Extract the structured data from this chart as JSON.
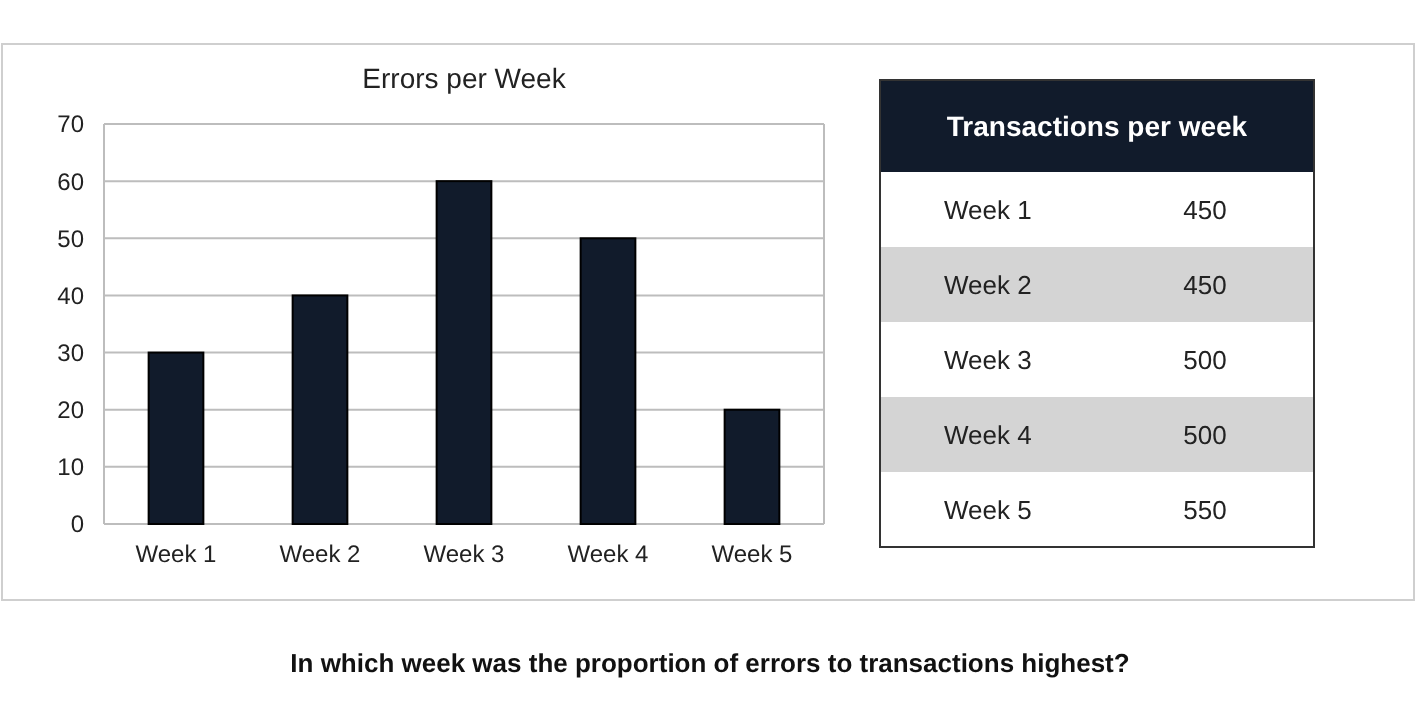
{
  "chart_data": [
    {
      "type": "bar",
      "title": "Errors per Week",
      "categories": [
        "Week 1",
        "Week 2",
        "Week 3",
        "Week 4",
        "Week 5"
      ],
      "values": [
        30,
        40,
        60,
        50,
        20
      ],
      "color": "#111b2b",
      "ylim": [
        0,
        70
      ],
      "yticks": [
        0,
        10,
        20,
        30,
        40,
        50,
        60,
        70
      ],
      "grid": "y",
      "annotations": [
        "In which week was the proportion of errors to transactions highest?"
      ]
    },
    {
      "type": "other",
      "title": "Transactions per week",
      "categories": [
        "Week 1",
        "Week 2",
        "Week 3",
        "Week 4",
        "Week 5"
      ],
      "values": [
        450,
        450,
        500,
        500,
        550
      ],
      "data_labels": true,
      "colors": [
        "#ffffff",
        "#d4d4d4",
        "#ffffff",
        "#d4d4d4",
        "#ffffff"
      ]
    }
  ]
}
